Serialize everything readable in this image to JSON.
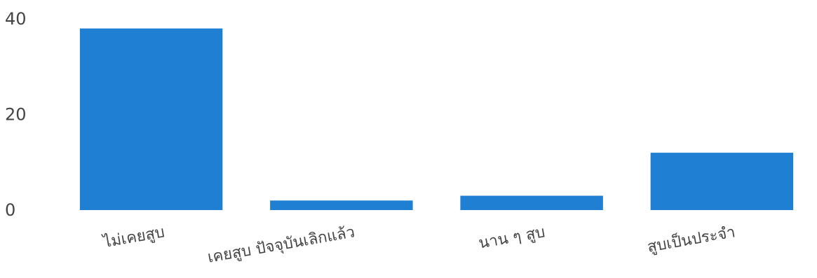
{
  "chart_data": {
    "type": "bar",
    "categories": [
      "ไม่เคยสูบ",
      "เคยสูบ ปัจจุบันเลิกแล้ว",
      "นาน ๆ สูบ",
      "สูบเป็นประจำ"
    ],
    "values": [
      38,
      2,
      3,
      12
    ],
    "ylim": [
      0,
      40
    ],
    "yticks": [
      0,
      20,
      40
    ],
    "ytick_labels": [
      "0",
      "20",
      "40"
    ],
    "grid": false,
    "legend": "none",
    "x_tick_label_rotation_deg": -10
  },
  "colors": {
    "bar": "#1f7fd3",
    "tick_text": "#444444",
    "background": "#ffffff"
  }
}
